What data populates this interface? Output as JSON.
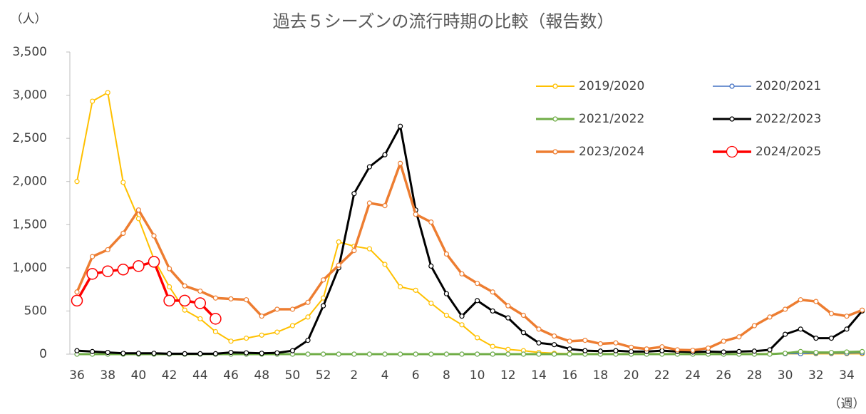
{
  "chart_data": {
    "type": "line",
    "title": "過去５シーズンの流行時期の比較（報告数）",
    "y_label": "（人）",
    "x_label": "（週）",
    "categories": [
      36,
      null,
      38,
      null,
      40,
      null,
      42,
      null,
      44,
      null,
      46,
      null,
      48,
      null,
      50,
      null,
      52,
      null,
      2,
      null,
      4,
      null,
      6,
      null,
      8,
      null,
      10,
      null,
      12,
      null,
      14,
      null,
      16,
      null,
      18,
      null,
      20,
      null,
      22,
      null,
      24,
      null,
      26,
      null,
      28,
      null,
      30,
      null,
      32,
      null,
      34,
      null
    ],
    "ylim": [
      0,
      3500
    ],
    "yticks": [
      0,
      500,
      {
        "value": 1000,
        "label": "1,000"
      },
      {
        "value": 1500,
        "label": "1,500"
      },
      {
        "value": 2000,
        "label": "2,000"
      },
      {
        "value": 2500,
        "label": "2,500"
      },
      {
        "value": 3000,
        "label": "3,000"
      },
      {
        "value": 3500,
        "label": "3,500"
      }
    ],
    "grid": false,
    "legend": "upper right",
    "series": [
      {
        "name": "2019/2020",
        "color": "#ffc000",
        "values": [
          2000,
          2930,
          3030,
          1990,
          1570,
          1100,
          780,
          510,
          410,
          260,
          150,
          185,
          220,
          255,
          330,
          430,
          650,
          1300,
          1250,
          1220,
          1040,
          780,
          740,
          590,
          450,
          340,
          190,
          90,
          55,
          40,
          20,
          10,
          5,
          5,
          5,
          5,
          5,
          5,
          5,
          5,
          5,
          5,
          5,
          5,
          5,
          5,
          5,
          5,
          5,
          5,
          5,
          5
        ]
      },
      {
        "name": "2020/2021",
        "color": "#4472c4",
        "values": [
          0,
          0,
          0,
          0,
          0,
          0,
          0,
          0,
          0,
          0,
          0,
          0,
          0,
          0,
          0,
          0,
          0,
          0,
          0,
          0,
          0,
          0,
          0,
          0,
          0,
          0,
          0,
          0,
          0,
          0,
          0,
          0,
          0,
          0,
          0,
          0,
          0,
          0,
          0,
          0,
          0,
          0,
          0,
          0,
          0,
          0,
          5,
          5,
          10,
          10,
          10,
          15
        ]
      },
      {
        "name": "2021/2022",
        "color": "#70ad47",
        "values": [
          0,
          0,
          0,
          0,
          0,
          0,
          0,
          0,
          0,
          0,
          0,
          0,
          0,
          0,
          0,
          0,
          0,
          0,
          0,
          0,
          0,
          0,
          0,
          0,
          0,
          0,
          0,
          0,
          0,
          0,
          0,
          0,
          0,
          0,
          0,
          0,
          0,
          0,
          0,
          0,
          0,
          0,
          0,
          0,
          0,
          0,
          10,
          30,
          20,
          20,
          25,
          30
        ]
      },
      {
        "name": "2022/2023",
        "color": "#000000",
        "values": [
          40,
          30,
          20,
          10,
          10,
          10,
          5,
          5,
          5,
          5,
          20,
          15,
          10,
          15,
          40,
          160,
          560,
          1000,
          1860,
          2170,
          2310,
          2640,
          1670,
          1020,
          700,
          440,
          620,
          500,
          420,
          250,
          130,
          110,
          60,
          40,
          35,
          40,
          30,
          30,
          40,
          30,
          25,
          30,
          25,
          30,
          35,
          50,
          230,
          290,
          185,
          185,
          290,
          500
        ]
      },
      {
        "name": "2023/2024",
        "color": "#ed7d31",
        "values": [
          720,
          1130,
          1210,
          1400,
          1670,
          1370,
          990,
          790,
          730,
          650,
          640,
          630,
          440,
          520,
          520,
          600,
          860,
          1030,
          1200,
          1750,
          1720,
          2210,
          1620,
          1530,
          1160,
          930,
          820,
          720,
          560,
          450,
          290,
          210,
          150,
          160,
          120,
          130,
          80,
          60,
          85,
          50,
          45,
          70,
          150,
          200,
          330,
          430,
          520,
          630,
          610,
          470,
          440,
          510
        ]
      },
      {
        "name": "2024/2025",
        "color": "#ff0000",
        "values": [
          620,
          930,
          960,
          980,
          1020,
          1070,
          620,
          620,
          590,
          410,
          null,
          null,
          null,
          null,
          null,
          null,
          null,
          null,
          null,
          null,
          null,
          null,
          null,
          null,
          null,
          null,
          null,
          null,
          null,
          null,
          null,
          null,
          null,
          null,
          null,
          null,
          null,
          null,
          null,
          null,
          null,
          null,
          null,
          null,
          null,
          null,
          null,
          null,
          null,
          null,
          null,
          null
        ]
      }
    ]
  }
}
